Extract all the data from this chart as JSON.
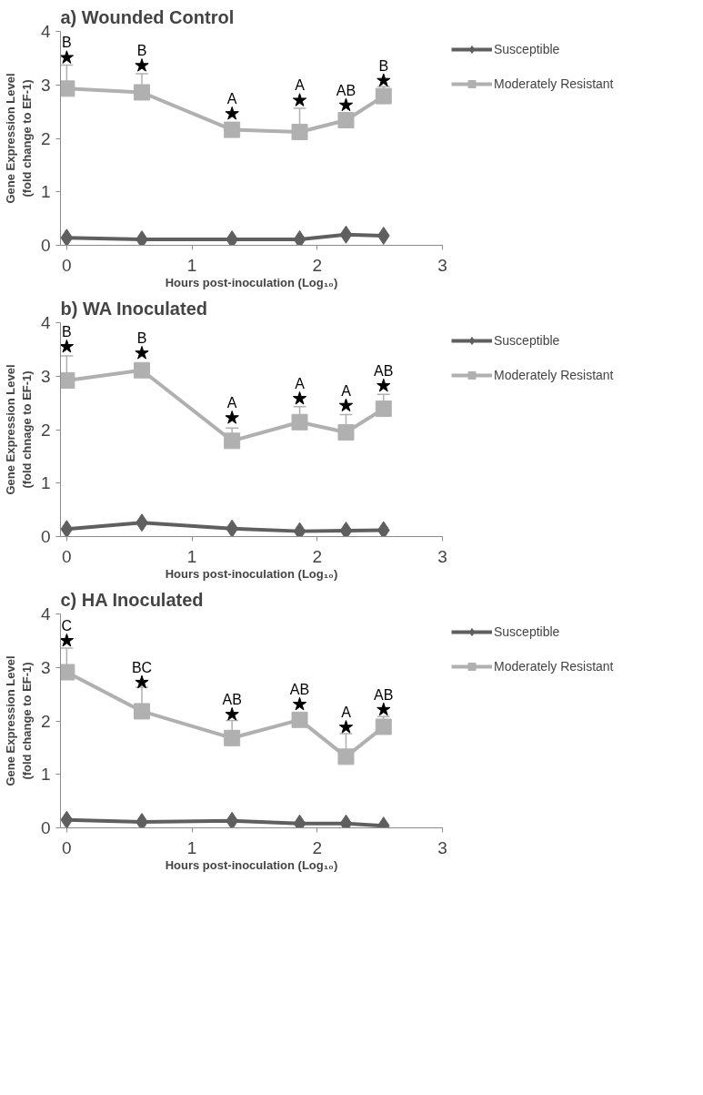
{
  "chart_data": [
    {
      "type": "line",
      "title": "a) Wounded Control",
      "xlabel": "Hours post-inoculation (Log₁₀)",
      "ylabel": "Gene Expression Level\n(fold change to EF-1)",
      "x": [
        0,
        0.6,
        1.32,
        1.86,
        2.23,
        2.53
      ],
      "xlim": [
        -0.05,
        3
      ],
      "xticks": [
        0,
        1,
        2,
        3
      ],
      "ylim": [
        0,
        4
      ],
      "yticks": [
        0,
        1,
        2,
        3,
        4
      ],
      "grid": false,
      "legend": "right",
      "line_style": "solid",
      "series": [
        {
          "name": "Susceptible",
          "color": "#5f5f5f",
          "marker": "diamond",
          "values": [
            0.14,
            0.11,
            0.11,
            0.11,
            0.2,
            0.18
          ]
        },
        {
          "name": "Moderately Resistant",
          "color": "#b0b0b0",
          "marker": "square",
          "values": [
            2.93,
            2.86,
            2.16,
            2.12,
            2.34,
            2.79
          ],
          "errors": [
            [
              2.93,
              3.37
            ],
            [
              2.86,
              3.21
            ],
            null,
            [
              2.12,
              2.56
            ],
            null,
            [
              2.79,
              2.97
            ]
          ]
        },
        {
          "type": "scatter",
          "color": "#000000",
          "marker": "star",
          "values": [
            3.51,
            3.36,
            2.46,
            2.71,
            2.62,
            3.08
          ]
        }
      ],
      "annotations": [
        {
          "text": "B",
          "x": 0,
          "y": 3.51
        },
        {
          "text": "B",
          "x": 0.6,
          "y": 3.36
        },
        {
          "text": "A",
          "x": 1.32,
          "y": 2.46
        },
        {
          "text": "A",
          "x": 1.86,
          "y": 2.71
        },
        {
          "text": "AB",
          "x": 2.23,
          "y": 2.62
        },
        {
          "text": "B",
          "x": 2.53,
          "y": 3.08
        }
      ]
    },
    {
      "type": "line",
      "title": "b) WA Inoculated",
      "xlabel": "Hours post-inoculation (Log₁₀)",
      "ylabel": "Gene Expression Level\n(fold chnage to EF-1)",
      "x": [
        0,
        0.6,
        1.32,
        1.86,
        2.23,
        2.53
      ],
      "xlim": [
        -0.05,
        3
      ],
      "xticks": [
        0,
        1,
        2,
        3
      ],
      "ylim": [
        0,
        4
      ],
      "yticks": [
        0,
        1,
        2,
        3,
        4
      ],
      "grid": false,
      "legend": "right",
      "line_style": "solid",
      "series": [
        {
          "name": "Susceptible",
          "color": "#5f5f5f",
          "marker": "diamond",
          "values": [
            0.14,
            0.26,
            0.15,
            0.1,
            0.11,
            0.12
          ]
        },
        {
          "name": "Moderately Resistant",
          "color": "#b0b0b0",
          "marker": "square",
          "values": [
            2.92,
            3.11,
            1.79,
            2.14,
            1.95,
            2.39
          ],
          "errors": [
            [
              2.92,
              3.38
            ],
            null,
            [
              1.79,
              2.03
            ],
            [
              2.14,
              2.43
            ],
            [
              1.95,
              2.28
            ],
            [
              2.39,
              2.66
            ]
          ]
        },
        {
          "type": "scatter",
          "color": "#000000",
          "marker": "star",
          "values": [
            3.55,
            3.43,
            2.22,
            2.58,
            2.45,
            2.82
          ]
        }
      ],
      "annotations": [
        {
          "text": "B",
          "x": 0,
          "y": 3.55
        },
        {
          "text": "B",
          "x": 0.6,
          "y": 3.43
        },
        {
          "text": "A",
          "x": 1.32,
          "y": 2.22
        },
        {
          "text": "A",
          "x": 1.86,
          "y": 2.58
        },
        {
          "text": "A",
          "x": 2.23,
          "y": 2.45
        },
        {
          "text": "AB",
          "x": 2.53,
          "y": 2.82
        }
      ]
    },
    {
      "type": "line",
      "title": "c) HA Inoculated",
      "xlabel": "Hours post-inoculation (Log₁₀)",
      "ylabel": "Gene Expression Level\n(fold change to EF-1)",
      "x": [
        0,
        0.6,
        1.32,
        1.86,
        2.23,
        2.53
      ],
      "xlim": [
        -0.05,
        3
      ],
      "xticks": [
        0,
        1,
        2,
        3
      ],
      "ylim": [
        0,
        4
      ],
      "yticks": [
        0,
        1,
        2,
        3,
        4
      ],
      "grid": false,
      "legend": "right",
      "line_style": "solid",
      "series": [
        {
          "name": "Susceptible",
          "color": "#5f5f5f",
          "marker": "diamond",
          "values": [
            0.15,
            0.11,
            0.13,
            0.08,
            0.08,
            0.04
          ]
        },
        {
          "name": "Moderately Resistant",
          "color": "#b0b0b0",
          "marker": "square",
          "values": [
            2.91,
            2.18,
            1.68,
            2.02,
            1.33,
            1.89
          ],
          "errors": [
            [
              2.91,
              3.36
            ],
            [
              2.18,
              2.63
            ],
            [
              1.68,
              2.01
            ],
            null,
            [
              1.33,
              1.76
            ],
            [
              1.89,
              2.08
            ]
          ]
        },
        {
          "type": "scatter",
          "color": "#000000",
          "marker": "star",
          "values": [
            3.5,
            2.72,
            2.12,
            2.31,
            1.88,
            2.21
          ]
        }
      ],
      "annotations": [
        {
          "text": "C",
          "x": 0,
          "y": 3.5
        },
        {
          "text": "BC",
          "x": 0.6,
          "y": 2.72
        },
        {
          "text": "AB",
          "x": 1.32,
          "y": 2.12
        },
        {
          "text": "AB",
          "x": 1.86,
          "y": 2.31
        },
        {
          "text": "A",
          "x": 2.23,
          "y": 1.88
        },
        {
          "text": "AB",
          "x": 2.53,
          "y": 2.21
        }
      ]
    }
  ]
}
